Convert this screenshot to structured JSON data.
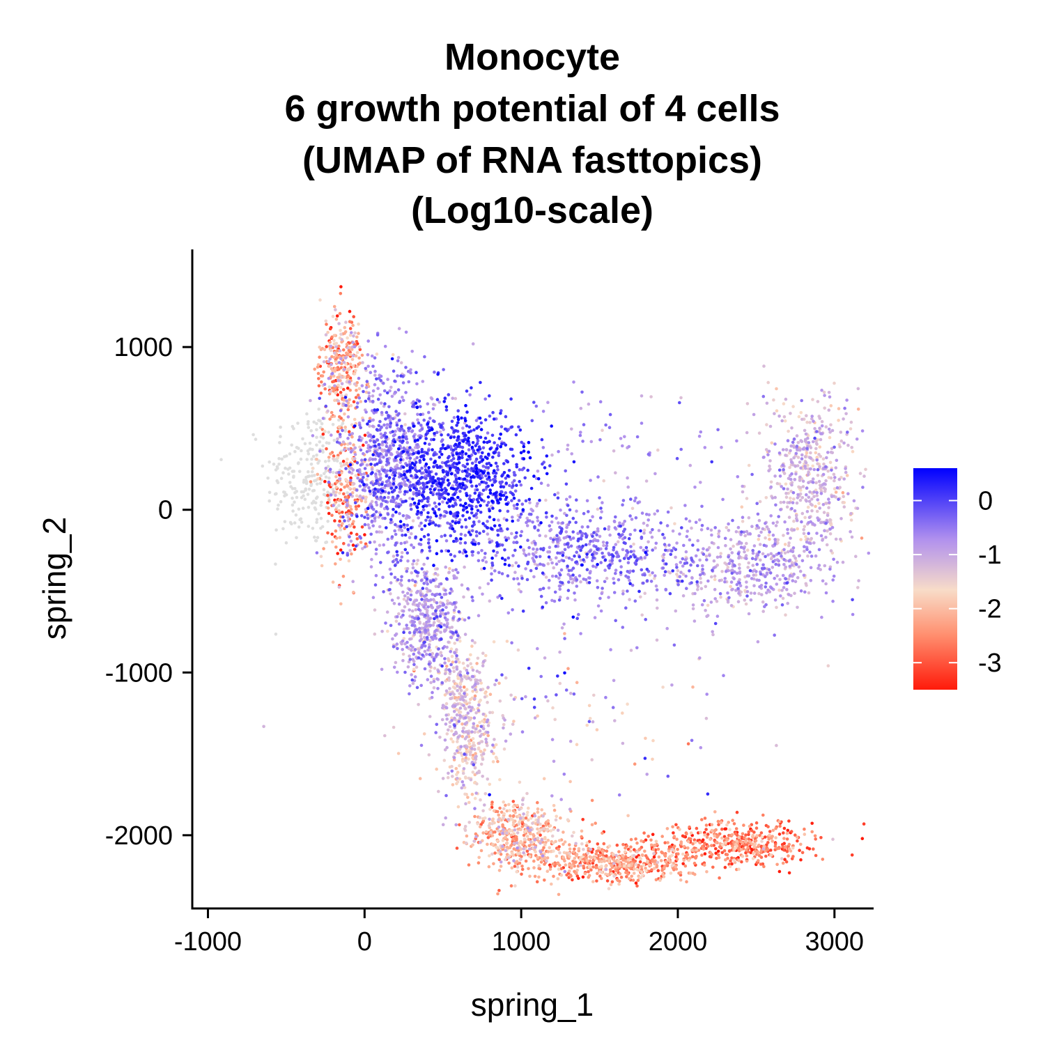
{
  "chart_data": {
    "type": "scatter",
    "title_lines": [
      "Monocyte",
      "6 growth potential of 4 cells",
      "(UMAP of RNA fasttopics)",
      "(Log10-scale)"
    ],
    "xlabel": "spring_1",
    "ylabel": "spring_2",
    "xlim": [
      -1100,
      3250
    ],
    "ylim": [
      -2450,
      1600
    ],
    "x_ticks": [
      -1000,
      0,
      1000,
      2000,
      3000
    ],
    "x_tick_labels": [
      "-1000",
      "0",
      "1000",
      "2000",
      "3000"
    ],
    "y_ticks": [
      1000,
      0,
      -1000,
      -2000
    ],
    "y_tick_labels": [
      "1000",
      "0",
      "-1000",
      "-2000"
    ],
    "grid": false,
    "colorbar": {
      "position": "right",
      "min": -3.5,
      "max": 0.6,
      "ticks": [
        0,
        -1,
        -2,
        -3
      ],
      "tick_labels": [
        "0",
        "-1",
        "-2",
        "-3"
      ],
      "colors": {
        "high": "#0000ff",
        "mid_high": "#b090ee",
        "mid": "#f8dcc8",
        "mid_low": "#ff9070",
        "low": "#ff1a0a"
      }
    },
    "na_color": "#dedede",
    "clusters": [
      {
        "center": [
          600,
          200
        ],
        "spread": [
          230,
          220
        ],
        "count": 950,
        "value": 0.1,
        "value_sd": 0.35
      },
      {
        "center": [
          150,
          300
        ],
        "spread": [
          150,
          330
        ],
        "count": 750,
        "value": -0.6,
        "value_sd": 0.35
      },
      {
        "center": [
          1350,
          -250
        ],
        "spread": [
          380,
          170
        ],
        "count": 650,
        "value": -0.55,
        "value_sd": 0.35
      },
      {
        "center": [
          2450,
          -350
        ],
        "spread": [
          260,
          150
        ],
        "count": 450,
        "value": -0.9,
        "value_sd": 0.35
      },
      {
        "center": [
          2850,
          200
        ],
        "spread": [
          150,
          250
        ],
        "count": 500,
        "value": -1.2,
        "value_sd": 0.35
      },
      {
        "center": [
          400,
          -700
        ],
        "spread": [
          120,
          180
        ],
        "count": 500,
        "value": -0.9,
        "value_sd": 0.4
      },
      {
        "center": [
          650,
          -1300
        ],
        "spread": [
          90,
          230
        ],
        "count": 450,
        "value": -1.4,
        "value_sd": 0.4
      },
      {
        "center": [
          1000,
          -2000
        ],
        "spread": [
          160,
          110
        ],
        "count": 450,
        "value": -2.0,
        "value_sd": 0.5
      },
      {
        "center": [
          1600,
          -2170
        ],
        "spread": [
          260,
          60
        ],
        "count": 500,
        "value": -2.4,
        "value_sd": 0.5
      },
      {
        "center": [
          2350,
          -2050
        ],
        "spread": [
          260,
          70
        ],
        "count": 450,
        "value": -2.7,
        "value_sd": 0.5
      },
      {
        "center": [
          -150,
          900
        ],
        "spread": [
          70,
          150
        ],
        "count": 280,
        "value": -2.2,
        "value_sd": 0.7
      },
      {
        "center": [
          -120,
          150
        ],
        "spread": [
          80,
          260
        ],
        "count": 250,
        "value": -2.3,
        "value_sd": 0.7
      },
      {
        "center": [
          1200,
          -1200
        ],
        "spread": [
          600,
          350
        ],
        "count": 120,
        "value": -0.9,
        "value_sd": 0.6
      },
      {
        "center": [
          1700,
          400
        ],
        "spread": [
          500,
          200
        ],
        "count": 80,
        "value": -0.7,
        "value_sd": 0.4
      }
    ],
    "na_clusters": [
      {
        "center": [
          -350,
          200
        ],
        "spread": [
          140,
          230
        ],
        "count": 230
      }
    ]
  }
}
